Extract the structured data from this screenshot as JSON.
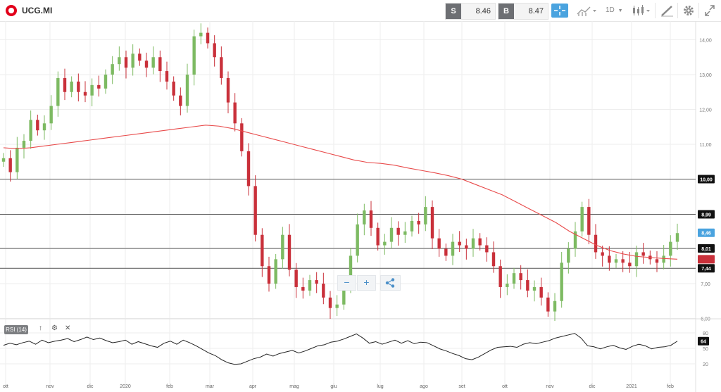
{
  "toolbar": {
    "symbol": "UCG.MI",
    "sell_tag": "S",
    "sell_price": "8.46",
    "buy_tag": "B",
    "buy_price": "8.47",
    "timeframe": "1D"
  },
  "colors": {
    "up": "#7dba62",
    "down": "#c9303a",
    "ma": "#e84a4a",
    "line": "#222222",
    "grid": "#eeeeee",
    "accent": "#4aa3df",
    "brand": "#e2001a"
  },
  "controls": {
    "zoom_out": "−",
    "zoom_in": "+",
    "share": "share-icon"
  },
  "rsi_panel": {
    "label": "RSI (14)",
    "last_value": "64"
  },
  "chart_data": [
    {
      "type": "candlestick",
      "x_ticks": [
        "ott",
        "nov",
        "dic",
        "2020",
        "feb",
        "mar",
        "apr",
        "mag",
        "giu",
        "lug",
        "ago",
        "set",
        "ott",
        "nov",
        "dic",
        "2021",
        "feb"
      ],
      "y_ticks": [
        "14,00",
        "13,00",
        "12,00",
        "11,00",
        "10,00",
        "9,00",
        "8,00",
        "7,00",
        "6,00"
      ],
      "ylim": [
        5.8,
        14.5
      ],
      "grid": true,
      "horizontal_levels": [
        {
          "value": 10.0,
          "label": "10,00"
        },
        {
          "value": 8.99,
          "label": "8,99"
        },
        {
          "value": 8.01,
          "label": "8,01"
        },
        {
          "value": 7.44,
          "label": "7,44"
        }
      ],
      "current_price": {
        "value": 8.46,
        "label": "8,46"
      },
      "ma_marker": {
        "value": 7.7,
        "label": ""
      },
      "close_series": [
        10.6,
        10.2,
        10.9,
        11.1,
        11.7,
        11.4,
        11.6,
        12.1,
        12.9,
        12.5,
        12.8,
        12.5,
        12.4,
        12.7,
        12.6,
        13.0,
        13.3,
        13.5,
        13.2,
        13.6,
        13.4,
        13.2,
        13.5,
        13.1,
        12.8,
        12.4,
        12.1,
        13.0,
        14.1,
        14.2,
        13.9,
        13.5,
        12.9,
        12.2,
        11.6,
        10.8,
        9.8,
        8.4,
        7.5,
        7.0,
        7.7,
        8.4,
        7.4,
        6.9,
        6.8,
        7.1,
        7.0,
        6.6,
        6.3,
        6.4,
        7.0,
        7.8,
        8.7,
        9.1,
        8.6,
        8.1,
        8.2,
        8.6,
        8.4,
        8.5,
        8.8,
        8.7,
        9.2,
        8.3,
        8.0,
        7.8,
        8.2,
        8.1,
        8.0,
        8.3,
        8.1,
        7.9,
        7.5,
        6.9,
        7.0,
        7.3,
        7.1,
        6.8,
        6.9,
        6.6,
        6.2,
        6.5,
        7.6,
        8.0,
        8.5,
        9.2,
        8.4,
        7.9,
        7.8,
        7.6,
        7.7,
        7.6,
        7.5,
        7.9,
        7.8,
        7.7,
        7.6,
        7.8,
        8.2,
        8.45
      ],
      "ma_series": [
        10.9,
        10.87,
        10.9,
        10.95,
        11.0,
        11.05,
        11.1,
        11.15,
        11.2,
        11.25,
        11.3,
        11.35,
        11.4,
        11.45,
        11.5,
        11.55,
        11.52,
        11.45,
        11.35,
        11.25,
        11.15,
        11.05,
        10.95,
        10.85,
        10.75,
        10.65,
        10.55,
        10.48,
        10.45,
        10.4,
        10.32,
        10.25,
        10.18,
        10.1,
        10.0,
        9.85,
        9.7,
        9.55,
        9.35,
        9.15,
        8.95,
        8.75,
        8.5,
        8.3,
        8.1,
        7.95,
        7.85,
        7.78,
        7.75,
        7.72,
        7.7
      ]
    },
    {
      "type": "line",
      "title": "RSI (14)",
      "y_ticks": [
        "80",
        "50",
        "20"
      ],
      "ylim": [
        15,
        85
      ],
      "values": [
        56,
        60,
        57,
        61,
        64,
        58,
        66,
        61,
        64,
        66,
        69,
        63,
        67,
        72,
        67,
        70,
        65,
        61,
        63,
        66,
        58,
        63,
        59,
        55,
        52,
        60,
        64,
        58,
        66,
        61,
        55,
        48,
        41,
        36,
        28,
        22,
        19,
        20,
        25,
        30,
        33,
        39,
        35,
        40,
        43,
        46,
        41,
        45,
        50,
        55,
        57,
        62,
        64,
        68,
        73,
        78,
        70,
        60,
        63,
        58,
        62,
        66,
        60,
        65,
        59,
        62,
        61,
        55,
        49,
        45,
        40,
        36,
        30,
        28,
        33,
        40,
        47,
        52,
        53,
        54,
        52,
        58,
        61,
        59,
        62,
        65,
        70,
        73,
        76,
        79,
        70,
        55,
        53,
        49,
        53,
        56,
        51,
        48,
        54,
        58,
        55,
        49,
        52,
        53,
        56,
        64
      ]
    }
  ]
}
